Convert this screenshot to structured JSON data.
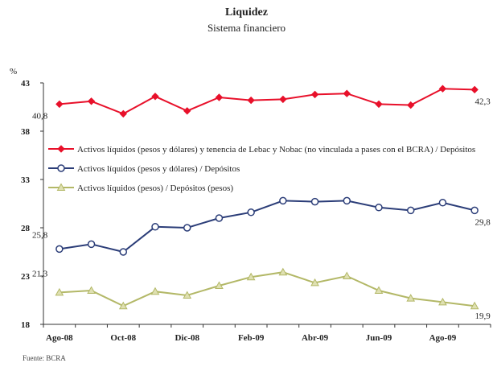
{
  "chart_data": {
    "type": "line",
    "title": "Liquidez",
    "subtitle": "Sistema financiero",
    "ylabel": "%",
    "source": "Fuente: BCRA",
    "ylim": [
      18,
      43
    ],
    "yticks": [
      "43",
      "38",
      "33",
      "28",
      "23",
      "18"
    ],
    "ytick_values": [
      43,
      38,
      33,
      28,
      23,
      18
    ],
    "xtick_labels": [
      "Ago-08",
      "Oct-08",
      "Dic-08",
      "Feb-09",
      "Abr-09",
      "Jun-09",
      "Ago-09"
    ],
    "x": [
      "Ago-08",
      "Sep-08",
      "Oct-08",
      "Nov-08",
      "Dic-08",
      "Ene-09",
      "Feb-09",
      "Mar-09",
      "Abr-09",
      "May-09",
      "Jun-09",
      "Jul-09",
      "Ago-09",
      "Sep-09"
    ],
    "series": [
      {
        "name": "Activos líquidos (pesos y dólares) y tenencia de Lebac y Nobac (no vinculada a pases con el BCRA) / Depósitos",
        "color": "#e8102a",
        "marker": "diamond",
        "values": [
          40.8,
          41.1,
          39.8,
          41.6,
          40.1,
          41.5,
          41.2,
          41.3,
          41.8,
          41.9,
          40.8,
          40.7,
          42.4,
          42.3
        ],
        "start_label": "40,8",
        "end_label": "42,3"
      },
      {
        "name": "Activos líquidos (pesos y dólares) / Depósitos",
        "color": "#2b3d78",
        "marker": "circle",
        "values": [
          25.8,
          26.3,
          25.5,
          28.1,
          28.0,
          29.0,
          29.6,
          30.8,
          30.7,
          30.8,
          30.1,
          29.8,
          30.6,
          29.8
        ],
        "start_label": "25,8",
        "end_label": "29,8"
      },
      {
        "name": "Activos líquidos (pesos) / Depósitos (pesos)",
        "color": "#b3b867",
        "marker": "triangle",
        "values": [
          21.3,
          21.5,
          19.9,
          21.4,
          21.0,
          22.0,
          22.9,
          23.4,
          22.3,
          23.0,
          21.5,
          20.7,
          20.3,
          19.9
        ],
        "start_label": "21,3",
        "end_label": "19,9"
      }
    ],
    "legend_position": "center-left",
    "grid": false
  }
}
